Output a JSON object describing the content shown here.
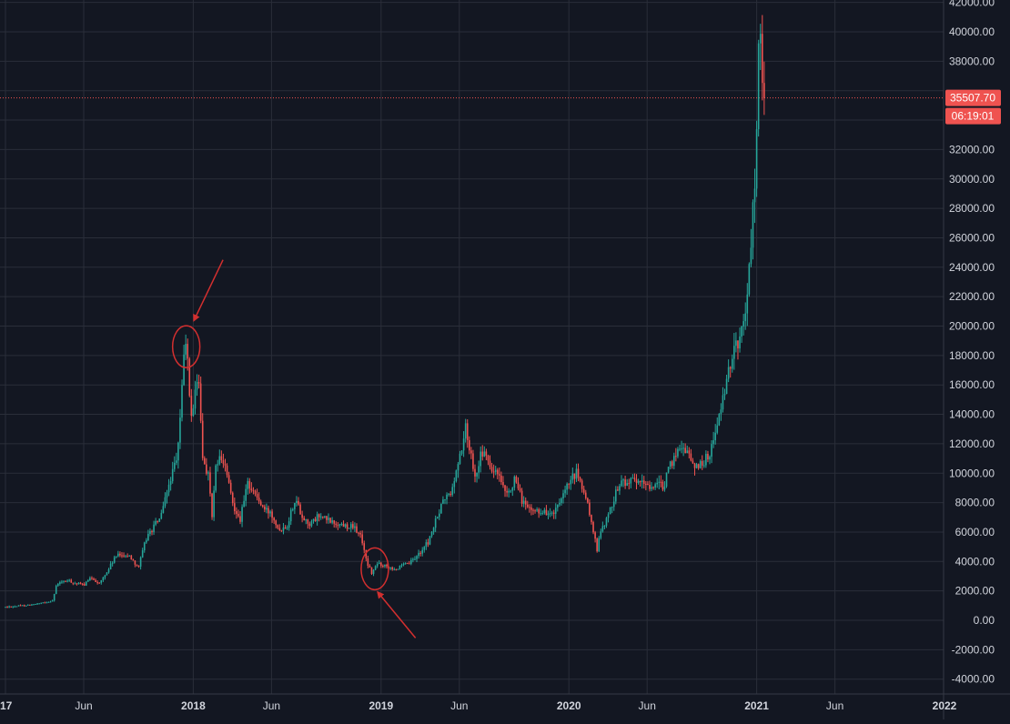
{
  "colors": {
    "background": "#131722",
    "grid": "#2a2e39",
    "axis_line": "#363a45",
    "axis_text": "#d1d4dc",
    "up_candle": "#26a69a",
    "down_candle": "#ef5350",
    "annotation": "#d32f2f",
    "price_line": "#ef5350",
    "badge_bg": "#ef5350",
    "badge_text": "#ffffff"
  },
  "price_badge": {
    "price": "35507.70",
    "countdown": "06:19:01"
  },
  "chart_data": {
    "type": "candlestick",
    "title": "",
    "xlabel": "",
    "ylabel": "",
    "x_unit": "months since January 2017",
    "ylim": [
      -5000,
      42500
    ],
    "grid": true,
    "y_ticks": [
      {
        "value": 42000,
        "label": "42000.00"
      },
      {
        "value": 40000,
        "label": "40000.00"
      },
      {
        "value": 38000,
        "label": "38000.00"
      },
      {
        "value": 32000,
        "label": "32000.00"
      },
      {
        "value": 30000,
        "label": "30000.00"
      },
      {
        "value": 28000,
        "label": "28000.00"
      },
      {
        "value": 26000,
        "label": "26000.00"
      },
      {
        "value": 24000,
        "label": "24000.00"
      },
      {
        "value": 22000,
        "label": "22000.00"
      },
      {
        "value": 20000,
        "label": "20000.00"
      },
      {
        "value": 18000,
        "label": "18000.00"
      },
      {
        "value": 16000,
        "label": "16000.00"
      },
      {
        "value": 14000,
        "label": "14000.00"
      },
      {
        "value": 12000,
        "label": "12000.00"
      },
      {
        "value": 10000,
        "label": "10000.00"
      },
      {
        "value": 8000,
        "label": "8000.00"
      },
      {
        "value": 6000,
        "label": "6000.00"
      },
      {
        "value": 4000,
        "label": "4000.00"
      },
      {
        "value": 2000,
        "label": "2000.00"
      },
      {
        "value": 0,
        "label": "0.00"
      },
      {
        "value": -2000,
        "label": "-2000.00"
      },
      {
        "value": -4000,
        "label": "-4000.00"
      }
    ],
    "x_ticks": [
      {
        "value": 0,
        "label": "17"
      },
      {
        "value": 5,
        "label": "Jun"
      },
      {
        "value": 12,
        "label": "2018"
      },
      {
        "value": 17,
        "label": "Jun"
      },
      {
        "value": 24,
        "label": "2019"
      },
      {
        "value": 29,
        "label": "Jun"
      },
      {
        "value": 36,
        "label": "2020"
      },
      {
        "value": 41,
        "label": "Jun"
      },
      {
        "value": 48,
        "label": "2021"
      },
      {
        "value": 53,
        "label": "Jun"
      },
      {
        "value": 60,
        "label": "2022"
      }
    ],
    "last_price": 35507.7,
    "price_path": [
      [
        0.0,
        900
      ],
      [
        1.0,
        1000
      ],
      [
        2.0,
        1100
      ],
      [
        2.5,
        1200
      ],
      [
        3.0,
        1350
      ],
      [
        3.3,
        2500
      ],
      [
        4.0,
        2700
      ],
      [
        4.5,
        2500
      ],
      [
        5.0,
        2400
      ],
      [
        5.5,
        2900
      ],
      [
        6.0,
        2500
      ],
      [
        6.5,
        3300
      ],
      [
        7.0,
        4300
      ],
      [
        7.5,
        4500
      ],
      [
        8.0,
        4300
      ],
      [
        8.5,
        3600
      ],
      [
        9.0,
        5600
      ],
      [
        9.5,
        6400
      ],
      [
        10.0,
        7200
      ],
      [
        10.5,
        9500
      ],
      [
        11.0,
        11000
      ],
      [
        11.3,
        16500
      ],
      [
        11.55,
        19500
      ],
      [
        11.8,
        14000
      ],
      [
        12.0,
        14500
      ],
      [
        12.3,
        17000
      ],
      [
        12.6,
        11000
      ],
      [
        13.0,
        9800
      ],
      [
        13.2,
        6900
      ],
      [
        13.5,
        11000
      ],
      [
        14.0,
        10600
      ],
      [
        14.5,
        8000
      ],
      [
        15.0,
        6900
      ],
      [
        15.5,
        9400
      ],
      [
        16.0,
        8500
      ],
      [
        16.5,
        7500
      ],
      [
        17.0,
        7300
      ],
      [
        17.5,
        6200
      ],
      [
        18.0,
        6500
      ],
      [
        18.5,
        8300
      ],
      [
        19.0,
        7000
      ],
      [
        19.5,
        6500
      ],
      [
        20.0,
        7100
      ],
      [
        21.0,
        6600
      ],
      [
        22.0,
        6400
      ],
      [
        22.5,
        6100
      ],
      [
        22.8,
        5400
      ],
      [
        23.0,
        4200
      ],
      [
        23.4,
        3200
      ],
      [
        23.8,
        3900
      ],
      [
        24.0,
        3800
      ],
      [
        25.0,
        3500
      ],
      [
        26.0,
        4000
      ],
      [
        27.0,
        5300
      ],
      [
        28.0,
        8200
      ],
      [
        28.5,
        8700
      ],
      [
        29.0,
        11000
      ],
      [
        29.4,
        13000
      ],
      [
        29.8,
        11000
      ],
      [
        30.0,
        10000
      ],
      [
        30.5,
        11500
      ],
      [
        31.0,
        10300
      ],
      [
        31.5,
        9800
      ],
      [
        32.0,
        8300
      ],
      [
        32.5,
        9500
      ],
      [
        33.0,
        8200
      ],
      [
        33.5,
        7400
      ],
      [
        34.0,
        7500
      ],
      [
        35.0,
        7200
      ],
      [
        35.5,
        8000
      ],
      [
        36.0,
        9300
      ],
      [
        36.5,
        10000
      ],
      [
        37.0,
        8600
      ],
      [
        37.5,
        6500
      ],
      [
        37.8,
        4600
      ],
      [
        38.0,
        6200
      ],
      [
        38.5,
        7000
      ],
      [
        39.0,
        8800
      ],
      [
        39.5,
        9500
      ],
      [
        40.0,
        9400
      ],
      [
        41.0,
        9200
      ],
      [
        42.0,
        9100
      ],
      [
        42.5,
        10500
      ],
      [
        43.0,
        11800
      ],
      [
        43.5,
        11700
      ],
      [
        44.0,
        10400
      ],
      [
        44.5,
        10700
      ],
      [
        45.0,
        11300
      ],
      [
        45.5,
        13500
      ],
      [
        46.0,
        15500
      ],
      [
        46.5,
        18500
      ],
      [
        47.0,
        19200
      ],
      [
        47.5,
        23500
      ],
      [
        47.8,
        28500
      ],
      [
        48.0,
        33000
      ],
      [
        48.1,
        38000
      ],
      [
        48.25,
        41000
      ],
      [
        48.4,
        36000
      ],
      [
        48.55,
        35507.7
      ]
    ]
  },
  "annotations": [
    {
      "kind": "circle",
      "label": "peak-circle",
      "x": 11.55,
      "y": 18600
    },
    {
      "kind": "arrow",
      "label": "peak-arrow",
      "from": [
        13.9,
        24500
      ],
      "to": [
        12.05,
        20400
      ]
    },
    {
      "kind": "circle",
      "label": "trough-circle",
      "x": 23.6,
      "y": 3500
    },
    {
      "kind": "arrow",
      "label": "trough-arrow",
      "from": [
        26.2,
        -1200
      ],
      "to": [
        23.8,
        1900
      ]
    }
  ]
}
